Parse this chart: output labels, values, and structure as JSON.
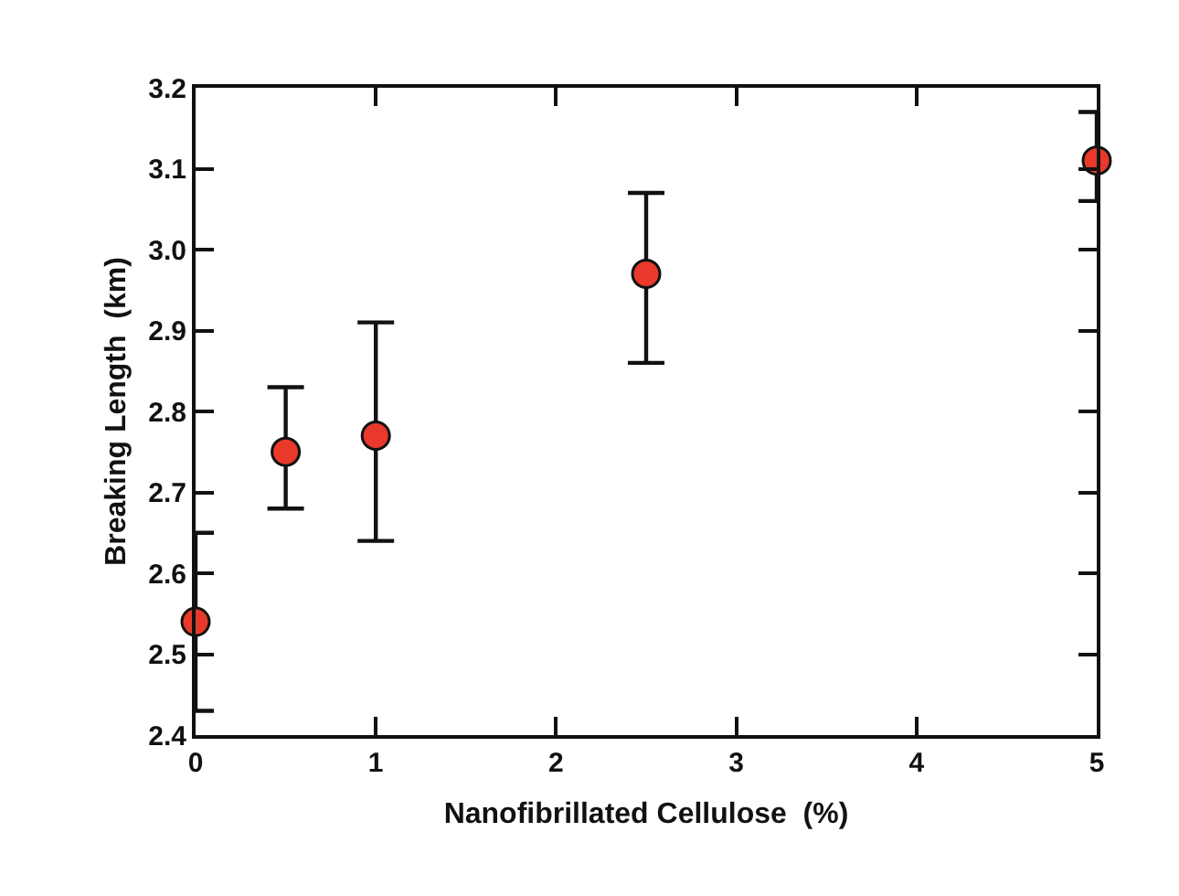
{
  "chart_data": {
    "type": "scatter",
    "xlabel": "Nanofibrillated Cellulose  (%)",
    "ylabel": "Breaking Length  (km)",
    "x": [
      0,
      0.5,
      1,
      2.5,
      5
    ],
    "series": [
      {
        "color": "#e8392a",
        "values": [
          2.54,
          2.75,
          2.77,
          2.97,
          3.11
        ],
        "errors": [
          [
            2.43,
            2.65
          ],
          [
            2.68,
            2.83
          ],
          [
            2.64,
            2.91
          ],
          [
            2.86,
            3.07
          ],
          [
            3.06,
            3.17
          ]
        ]
      }
    ],
    "xlim": [
      0,
      5
    ],
    "xticks": [
      0,
      1,
      2,
      3,
      4,
      5
    ],
    "ylim": [
      2.4,
      3.2
    ],
    "yticks": [
      2.4,
      2.5,
      2.6,
      2.7,
      2.8,
      2.9,
      {
        "value": 3,
        "label": "3.0"
      },
      3.1,
      3.2
    ],
    "marker": "circle"
  }
}
